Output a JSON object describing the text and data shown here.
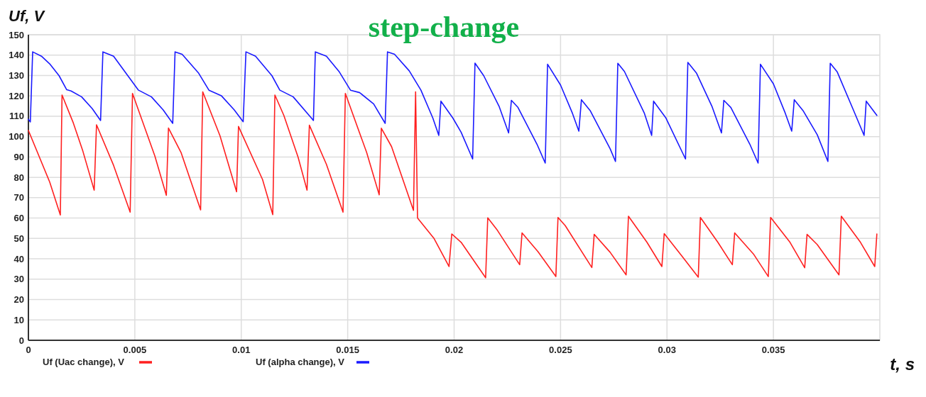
{
  "chart_data": {
    "type": "line",
    "title": "step-change",
    "ylabel": "Uf, V",
    "xlabel": "t, s",
    "xlim": [
      0,
      0.04
    ],
    "xticks": [
      0,
      0.005,
      0.01,
      0.015,
      0.02,
      0.025,
      0.03,
      0.035
    ],
    "ylim": [
      0,
      150
    ],
    "yticks": [
      0,
      10,
      20,
      30,
      40,
      50,
      60,
      70,
      80,
      90,
      100,
      110,
      120,
      130,
      140,
      150
    ],
    "grid": true,
    "legend": "bottom",
    "marker": "none",
    "line_style": "solid",
    "series": [
      {
        "name": "Uf (Uac change), V",
        "color": "#ff2020",
        "x": [
          0,
          0.001,
          0.0015,
          0.00158,
          0.00211,
          0.00256,
          0.00309,
          0.0032,
          0.004,
          0.00478,
          0.00489,
          0.00594,
          0.00648,
          0.00658,
          0.00717,
          0.00809,
          0.00819,
          0.009,
          0.00978,
          0.00987,
          0.011,
          0.01148,
          0.01158,
          0.012,
          0.01267,
          0.01309,
          0.0132,
          0.014,
          0.01478,
          0.01489,
          0.01589,
          0.01648,
          0.01658,
          0.01706,
          0.01809,
          0.01819,
          0.01828,
          0.01906,
          0.01976,
          0.01989,
          0.02033,
          0.02148,
          0.02158,
          0.022,
          0.02308,
          0.02319,
          0.02394,
          0.02478,
          0.02488,
          0.02522,
          0.02647,
          0.02658,
          0.02733,
          0.02808,
          0.02819,
          0.02906,
          0.02976,
          0.02987,
          0.03067,
          0.03147,
          0.03157,
          0.03239,
          0.03307,
          0.03318,
          0.03406,
          0.03476,
          0.03487,
          0.03578,
          0.03647,
          0.03658,
          0.03706,
          0.03808,
          0.03819,
          0.03909,
          0.03976,
          0.03986
        ],
        "values": [
          103,
          77.7,
          61.5,
          120.4,
          106.7,
          92.8,
          73.7,
          105.8,
          85.9,
          62.9,
          121.2,
          90.5,
          71.2,
          104.2,
          92.2,
          64,
          122,
          100.4,
          72.9,
          105,
          78.9,
          61.7,
          120.4,
          110.4,
          89.9,
          73.7,
          105.6,
          86.4,
          62.9,
          121.2,
          92.2,
          71.4,
          104.1,
          95.1,
          63.8,
          122,
          60,
          49.9,
          36.2,
          52.2,
          48.1,
          30.7,
          60.1,
          54.5,
          37.1,
          52.7,
          43.5,
          31.3,
          60.3,
          56.3,
          35.7,
          52,
          43.2,
          32.1,
          60.9,
          48.1,
          36.2,
          52.4,
          41.8,
          31,
          60.3,
          48.1,
          37.1,
          52.7,
          42.4,
          31.3,
          60.3,
          48.1,
          35.6,
          52,
          47,
          32.1,
          60.9,
          48.1,
          36.2,
          52.2
        ]
      },
      {
        "name": "Uf (alpha change), V",
        "color": "#1a1aff",
        "x": [
          0,
          9e-05,
          0.0002,
          0.00061,
          0.001,
          0.00144,
          0.0018,
          0.002,
          0.0025,
          0.003,
          0.00339,
          0.0035,
          0.004,
          0.00467,
          0.00517,
          0.00578,
          0.00633,
          0.00678,
          0.00689,
          0.00722,
          0.008,
          0.00848,
          0.00906,
          0.00967,
          0.01009,
          0.01022,
          0.01067,
          0.01144,
          0.01181,
          0.01244,
          0.01333,
          0.01339,
          0.01348,
          0.014,
          0.01461,
          0.01513,
          0.01556,
          0.01622,
          0.01676,
          0.01687,
          0.0172,
          0.01789,
          0.01844,
          0.019,
          0.01928,
          0.01938,
          0.01994,
          0.02033,
          0.02087,
          0.02098,
          0.02139,
          0.02211,
          0.02256,
          0.02269,
          0.023,
          0.02389,
          0.02428,
          0.02439,
          0.025,
          0.02556,
          0.02586,
          0.02598,
          0.02639,
          0.02733,
          0.02758,
          0.02769,
          0.028,
          0.02894,
          0.02928,
          0.02937,
          0.02994,
          0.03087,
          0.03098,
          0.03139,
          0.03211,
          0.03256,
          0.03267,
          0.033,
          0.03389,
          0.03428,
          0.03439,
          0.035,
          0.03556,
          0.03586,
          0.03598,
          0.03639,
          0.03706,
          0.03756,
          0.03767,
          0.038,
          0.03878,
          0.03926,
          0.03936,
          0.03986
        ],
        "values": [
          108.5,
          107.2,
          141.6,
          139.5,
          135.7,
          129.9,
          123,
          122.4,
          119.5,
          113.7,
          107.9,
          141.6,
          139.5,
          129.9,
          122.8,
          119.5,
          113.1,
          106.5,
          141.6,
          140.4,
          131.1,
          122.8,
          120.1,
          113.1,
          107.3,
          141.6,
          139.5,
          129.9,
          122.8,
          119.5,
          108.7,
          107.9,
          141.6,
          139.5,
          131.7,
          122.8,
          121.6,
          116,
          106.5,
          141.6,
          140.4,
          132.3,
          122.8,
          109.1,
          100.6,
          117.4,
          109.1,
          102.1,
          89,
          136.1,
          129.9,
          114.9,
          101.8,
          117.8,
          114.3,
          96.3,
          87,
          135.5,
          125.3,
          111.4,
          102.7,
          118.1,
          112.8,
          94,
          87.8,
          136,
          132,
          111.4,
          100.6,
          117.4,
          109.3,
          89,
          136.4,
          131.1,
          114.9,
          101.8,
          117.8,
          114.3,
          96.3,
          87,
          135.5,
          125.9,
          111.4,
          102.7,
          118.1,
          112.8,
          100.9,
          87.8,
          136,
          131.7,
          112.5,
          100.6,
          117.4,
          110.4
        ]
      }
    ]
  }
}
